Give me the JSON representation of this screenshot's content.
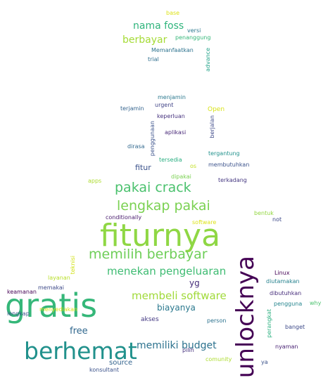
{
  "words": [
    {
      "text": "fiturnya",
      "color": "#8fd744"
    },
    {
      "text": "gratis",
      "color": "#35b779"
    },
    {
      "text": "berhemat",
      "color": "#21918c"
    },
    {
      "text": "unlocknya",
      "color": "#440154"
    },
    {
      "text": "pakai crack",
      "color": "#4ac16d"
    },
    {
      "text": "lengkap pakai",
      "color": "#7ad151"
    },
    {
      "text": "memilih berbayar",
      "color": "#6ece58"
    },
    {
      "text": "menekan pengeluaran",
      "color": "#3fbc73"
    },
    {
      "text": "membeli software",
      "color": "#a0da39"
    },
    {
      "text": "memiliki budget",
      "color": "#2c728e"
    },
    {
      "text": "nama foss",
      "color": "#2fb47c"
    },
    {
      "text": "berbayar",
      "color": "#a5db36"
    },
    {
      "text": "biayanya",
      "color": "#2a788e"
    },
    {
      "text": "free",
      "color": "#31688e"
    },
    {
      "text": "fitur",
      "color": "#3b528b"
    },
    {
      "text": "yg",
      "color": "#472d7b"
    },
    {
      "text": "source",
      "color": "#33638d"
    },
    {
      "text": "akses",
      "color": "#443983"
    },
    {
      "text": "base",
      "color": "#dde318"
    },
    {
      "text": "versi",
      "color": "#2a788e"
    },
    {
      "text": "penanggung",
      "color": "#35b779"
    },
    {
      "text": "Memanfaatkan",
      "color": "#2c728e"
    },
    {
      "text": "trial",
      "color": "#2e6e8e"
    },
    {
      "text": "advance",
      "color": "#1fa187"
    },
    {
      "text": "menjamin",
      "color": "#2a788e"
    },
    {
      "text": "urgent",
      "color": "#414487"
    },
    {
      "text": "terjamin",
      "color": "#33638d"
    },
    {
      "text": "keperluan",
      "color": "#46327e"
    },
    {
      "text": "Open",
      "color": "#d8e219"
    },
    {
      "text": "berjalan",
      "color": "#3e4a89"
    },
    {
      "text": "penggunaan",
      "color": "#3b528b"
    },
    {
      "text": "aplikasi",
      "color": "#482878"
    },
    {
      "text": "dirasa",
      "color": "#31688e"
    },
    {
      "text": "tergantung",
      "color": "#21918c"
    },
    {
      "text": "tersedia",
      "color": "#28ae80"
    },
    {
      "text": "os",
      "color": "#c2df23"
    },
    {
      "text": "membutuhkan",
      "color": "#3b528b"
    },
    {
      "text": "dipakai",
      "color": "#7ad151"
    },
    {
      "text": "apps",
      "color": "#addc30"
    },
    {
      "text": "terkadang",
      "color": "#453781"
    },
    {
      "text": "bentuk",
      "color": "#93d741"
    },
    {
      "text": "conditionally",
      "color": "#481b6d"
    },
    {
      "text": "software",
      "color": "#dde318"
    },
    {
      "text": "not",
      "color": "#3e4a89"
    },
    {
      "text": "teknisi",
      "color": "#d2e21b"
    },
    {
      "text": "layanan",
      "color": "#b8de29"
    },
    {
      "text": "Linux",
      "color": "#440154"
    },
    {
      "text": "diutamakan",
      "color": "#26828e"
    },
    {
      "text": "keamanan",
      "color": "#440154"
    },
    {
      "text": "memakai",
      "color": "#3e4a89"
    },
    {
      "text": "dibutuhkan",
      "color": "#472d7b"
    },
    {
      "text": "pengguna",
      "color": "#25858e"
    },
    {
      "text": "perangkat",
      "color": "#2ab07f"
    },
    {
      "text": "why",
      "color": "#4ac16d"
    },
    {
      "text": "lengkap",
      "color": "#3b528b"
    },
    {
      "text": "menyediakan",
      "color": "#d8e219"
    },
    {
      "text": "person",
      "color": "#2c728e"
    },
    {
      "text": "banget",
      "color": "#3e4a89"
    },
    {
      "text": "nyaman",
      "color": "#482173"
    },
    {
      "text": "pilih",
      "color": "#46327e"
    },
    {
      "text": "comunity",
      "color": "#addc30"
    },
    {
      "text": "ya",
      "color": "#3b528b"
    },
    {
      "text": "konsultant",
      "color": "#3b528b"
    }
  ]
}
